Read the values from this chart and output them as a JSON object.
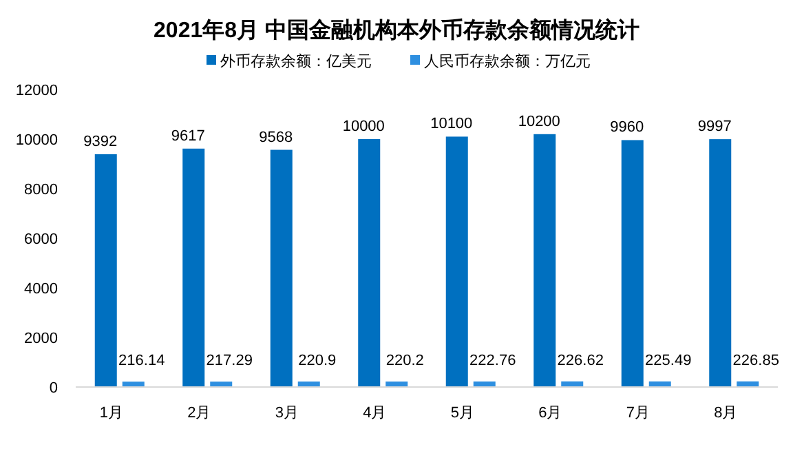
{
  "chart_data": {
    "type": "bar",
    "title": "2021年8月 中国金融机构本外币存款余额情况统计",
    "categories": [
      "1月",
      "2月",
      "3月",
      "4月",
      "5月",
      "6月",
      "7月",
      "8月"
    ],
    "series": [
      {
        "name": "外币存款余额：亿美元",
        "color": "#0070c0",
        "values": [
          9392,
          9617,
          9568,
          10000,
          10100,
          10200,
          9960,
          9997
        ]
      },
      {
        "name": "人民币存款余额：万亿元",
        "color": "#2e8fe0",
        "values": [
          216.14,
          217.29,
          220.9,
          220.2,
          222.76,
          226.62,
          225.49,
          226.85
        ]
      }
    ],
    "ylim": [
      0,
      12000
    ],
    "yticks": [
      0,
      2000,
      4000,
      6000,
      8000,
      10000,
      12000
    ],
    "grid": false,
    "legend": "top",
    "data_labels": true
  }
}
